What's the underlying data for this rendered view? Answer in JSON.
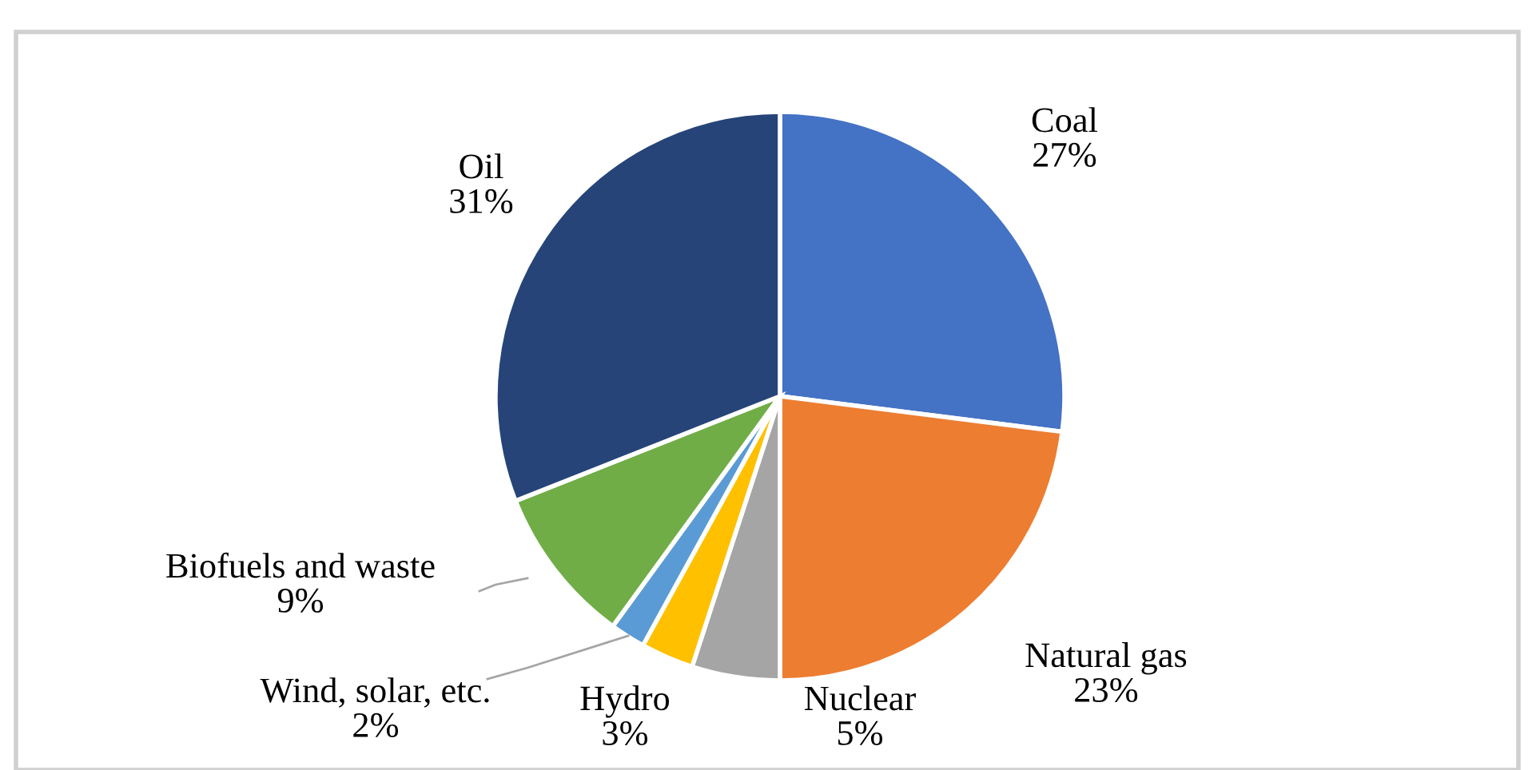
{
  "chart_data": {
    "type": "pie",
    "categories": [
      "Coal",
      "Natural gas",
      "Nuclear",
      "Hydro",
      "Wind, solar, etc.",
      "Biofuels and waste",
      "Oil"
    ],
    "values": [
      27,
      23,
      5,
      3,
      2,
      9,
      31
    ],
    "value_labels": [
      "27%",
      "23%",
      "5%",
      "3%",
      "2%",
      "9%",
      "31%"
    ],
    "colors": [
      "#4472c4",
      "#ed7d31",
      "#a5a5a5",
      "#ffc000",
      "#5b9bd5",
      "#70ad47",
      "#264478"
    ],
    "legend": false
  }
}
